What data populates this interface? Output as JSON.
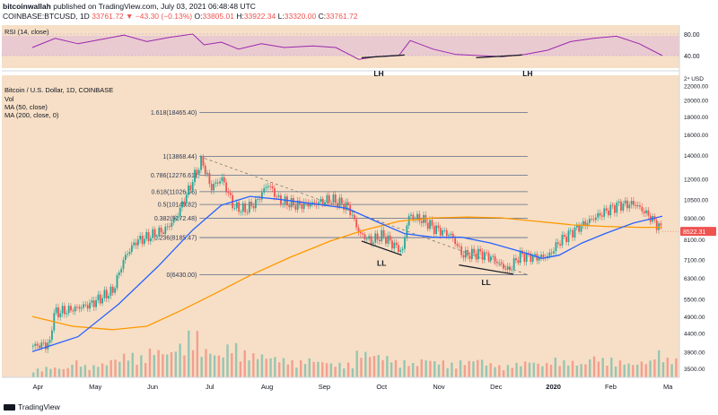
{
  "header": {
    "author": "bitcoinwallah",
    "published_on": "published on TradingView.com, July 03, 2021 06:48:48 UTC",
    "symbol": "COINBASE:BTCUSD, 1D",
    "change": "33761.72 ▼ −43.30 (−0.13%)",
    "ohlc": {
      "o_label": "O:",
      "o": "33805.01",
      "h_label": "H:",
      "h": "33922.34",
      "l_label": "L:",
      "l": "33320.00",
      "c_label": "C:",
      "c": "33761.72"
    }
  },
  "chart_data": {
    "type": "line",
    "title": "Bitcoin / U.S. Dollar, 1D, COINBASE",
    "legend_items": [
      "Vol",
      "MA (50, close)",
      "MA (200, close, 0)"
    ],
    "rsi_panel": {
      "label": "RSI (14, close)",
      "ticks": [
        "80.00",
        "40.00"
      ],
      "annotations": [
        "LH",
        "LH"
      ]
    },
    "x_tick_labels": [
      "Apr",
      "May",
      "Jun",
      "Jul",
      "Aug",
      "Sep",
      "Oct",
      "Nov",
      "Dec",
      "2020",
      "Feb",
      "Ma"
    ],
    "y_scale": "log",
    "y_top_label": "2⁴ USD",
    "y_tick_labels": [
      "22000.00",
      "20000.00",
      "18000.00",
      "16000.00",
      "14000.00",
      "12000.00",
      "10500.00",
      "9300.00",
      "8100.00",
      "7100.00",
      "6300.00",
      "5500.00",
      "4900.00",
      "4400.00",
      "3900.00",
      "3500.00"
    ],
    "y_ticks": [
      22000,
      20000,
      18000,
      16000,
      14000,
      12000,
      10500,
      9300,
      8100,
      7100,
      6300,
      5500,
      4900,
      4400,
      3900,
      3500
    ],
    "ylim": [
      3300,
      23500
    ],
    "last_price_label": "8522.31",
    "last_price": 8522.31,
    "fibonacci_levels": [
      {
        "label": "1.618(18465.40)",
        "value": 18465.4
      },
      {
        "label": "1(13868.44)",
        "value": 13868.44
      },
      {
        "label": "0.786(12276.61)",
        "value": 12276.61
      },
      {
        "label": "0.618(11026.96)",
        "value": 11026.96
      },
      {
        "label": "0.5(10149.82)",
        "value": 10149.82
      },
      {
        "label": "0.382(9272.48)",
        "value": 9272.48
      },
      {
        "label": "0.236(8185.47)",
        "value": 8185.47
      },
      {
        "label": "0(6430.00)",
        "value": 6430.0
      }
    ],
    "annotations": [
      "LL",
      "LL"
    ],
    "colors": {
      "candle_up": "#26a69a",
      "candle_down": "#ef5350",
      "ma50": "#2962ff",
      "ma200": "#ff9800",
      "background": "#f6dfc6",
      "rsi_band": "#e8c8d0",
      "rsi_line": "#9c27b0"
    },
    "price_path": [
      {
        "month": 0,
        "close": 4050
      },
      {
        "month": 0.3,
        "close": 4100
      },
      {
        "month": 0.35,
        "close": 5000
      },
      {
        "month": 0.6,
        "close": 5100
      },
      {
        "month": 1.0,
        "close": 5300
      },
      {
        "month": 1.4,
        "close": 5800
      },
      {
        "month": 1.6,
        "close": 7200
      },
      {
        "month": 1.8,
        "close": 8000
      },
      {
        "month": 2.0,
        "close": 8200
      },
      {
        "month": 2.3,
        "close": 8600
      },
      {
        "month": 2.5,
        "close": 9300
      },
      {
        "month": 2.7,
        "close": 11000
      },
      {
        "month": 2.85,
        "close": 12500
      },
      {
        "month": 2.95,
        "close": 13500
      },
      {
        "month": 3.1,
        "close": 11300
      },
      {
        "month": 3.3,
        "close": 12000
      },
      {
        "month": 3.5,
        "close": 10000
      },
      {
        "month": 3.7,
        "close": 9800
      },
      {
        "month": 3.9,
        "close": 10300
      },
      {
        "month": 4.1,
        "close": 11600
      },
      {
        "month": 4.3,
        "close": 10400
      },
      {
        "month": 4.6,
        "close": 10100
      },
      {
        "month": 4.9,
        "close": 10200
      },
      {
        "month": 5.2,
        "close": 10500
      },
      {
        "month": 5.5,
        "close": 10000
      },
      {
        "month": 5.7,
        "close": 8400
      },
      {
        "month": 5.9,
        "close": 8000
      },
      {
        "month": 6.1,
        "close": 8300
      },
      {
        "month": 6.3,
        "close": 7800
      },
      {
        "month": 6.45,
        "close": 7450
      },
      {
        "month": 6.55,
        "close": 9400
      },
      {
        "month": 6.8,
        "close": 9200
      },
      {
        "month": 7.0,
        "close": 8700
      },
      {
        "month": 7.3,
        "close": 8300
      },
      {
        "month": 7.5,
        "close": 7300
      },
      {
        "month": 7.8,
        "close": 7400
      },
      {
        "month": 8.0,
        "close": 7200
      },
      {
        "month": 8.3,
        "close": 6600
      },
      {
        "month": 8.5,
        "close": 7300
      },
      {
        "month": 8.8,
        "close": 7200
      },
      {
        "month": 9.0,
        "close": 7250
      },
      {
        "month": 9.2,
        "close": 8000
      },
      {
        "month": 9.5,
        "close": 8700
      },
      {
        "month": 9.8,
        "close": 9300
      },
      {
        "month": 10.0,
        "close": 9700
      },
      {
        "month": 10.2,
        "close": 10100
      },
      {
        "month": 10.5,
        "close": 10200
      },
      {
        "month": 10.7,
        "close": 9600
      },
      {
        "month": 10.9,
        "close": 8900
      },
      {
        "month": 11.0,
        "close": 8522
      }
    ],
    "ma50_path": [
      {
        "month": 0,
        "close": 3900
      },
      {
        "month": 0.8,
        "close": 4300
      },
      {
        "month": 1.5,
        "close": 5300
      },
      {
        "month": 2.2,
        "close": 6800
      },
      {
        "month": 2.8,
        "close": 8600
      },
      {
        "month": 3.3,
        "close": 10100
      },
      {
        "month": 3.8,
        "close": 10700
      },
      {
        "month": 4.3,
        "close": 10500
      },
      {
        "month": 4.9,
        "close": 10200
      },
      {
        "month": 5.5,
        "close": 9900
      },
      {
        "month": 6.0,
        "close": 9100
      },
      {
        "month": 6.5,
        "close": 8400
      },
      {
        "month": 7.0,
        "close": 8200
      },
      {
        "month": 7.5,
        "close": 8200
      },
      {
        "month": 8.0,
        "close": 7900
      },
      {
        "month": 8.5,
        "close": 7500
      },
      {
        "month": 8.9,
        "close": 7150
      },
      {
        "month": 9.2,
        "close": 7300
      },
      {
        "month": 9.6,
        "close": 7900
      },
      {
        "month": 10.0,
        "close": 8400
      },
      {
        "month": 10.5,
        "close": 9000
      },
      {
        "month": 11.0,
        "close": 9400
      }
    ],
    "ma200_path": [
      {
        "month": 0,
        "close": 4900
      },
      {
        "month": 0.7,
        "close": 4600
      },
      {
        "month": 1.4,
        "close": 4500
      },
      {
        "month": 2.0,
        "close": 4600
      },
      {
        "month": 2.6,
        "close": 5100
      },
      {
        "month": 3.2,
        "close": 5700
      },
      {
        "month": 3.8,
        "close": 6400
      },
      {
        "month": 4.5,
        "close": 7200
      },
      {
        "month": 5.2,
        "close": 8000
      },
      {
        "month": 5.8,
        "close": 8600
      },
      {
        "month": 6.4,
        "close": 9100
      },
      {
        "month": 7.0,
        "close": 9300
      },
      {
        "month": 7.6,
        "close": 9350
      },
      {
        "month": 8.2,
        "close": 9300
      },
      {
        "month": 8.8,
        "close": 9100
      },
      {
        "month": 9.4,
        "close": 8900
      },
      {
        "month": 10.0,
        "close": 8800
      },
      {
        "month": 10.6,
        "close": 8750
      },
      {
        "month": 11.0,
        "close": 8750
      }
    ],
    "rsi_path": [
      {
        "month": 0,
        "rsi": 55
      },
      {
        "month": 0.4,
        "rsi": 72
      },
      {
        "month": 0.8,
        "rsi": 62
      },
      {
        "month": 1.2,
        "rsi": 70
      },
      {
        "month": 1.6,
        "rsi": 78
      },
      {
        "month": 2.0,
        "rsi": 66
      },
      {
        "month": 2.4,
        "rsi": 74
      },
      {
        "month": 2.8,
        "rsi": 80
      },
      {
        "month": 3.0,
        "rsi": 60
      },
      {
        "month": 3.3,
        "rsi": 65
      },
      {
        "month": 3.6,
        "rsi": 52
      },
      {
        "month": 4.0,
        "rsi": 62
      },
      {
        "month": 4.4,
        "rsi": 55
      },
      {
        "month": 4.9,
        "rsi": 58
      },
      {
        "month": 5.3,
        "rsi": 55
      },
      {
        "month": 5.7,
        "rsi": 33
      },
      {
        "month": 6.0,
        "rsi": 38
      },
      {
        "month": 6.4,
        "rsi": 40
      },
      {
        "month": 6.6,
        "rsi": 68
      },
      {
        "month": 7.0,
        "rsi": 52
      },
      {
        "month": 7.4,
        "rsi": 42
      },
      {
        "month": 7.8,
        "rsi": 40
      },
      {
        "month": 8.2,
        "rsi": 38
      },
      {
        "month": 8.6,
        "rsi": 42
      },
      {
        "month": 9.0,
        "rsi": 50
      },
      {
        "month": 9.4,
        "rsi": 66
      },
      {
        "month": 9.8,
        "rsi": 72
      },
      {
        "month": 10.2,
        "rsi": 76
      },
      {
        "month": 10.6,
        "rsi": 62
      },
      {
        "month": 11.0,
        "rsi": 40
      }
    ],
    "volume_profile": [
      0.18,
      0.22,
      0.2,
      0.35,
      0.25,
      0.3,
      0.4,
      0.5,
      0.45,
      0.6,
      0.55,
      0.7,
      0.95,
      0.6,
      0.5,
      0.7,
      0.55,
      0.5,
      0.45,
      0.4,
      0.35,
      0.4,
      0.35,
      0.3,
      0.3,
      0.55,
      0.5,
      0.45,
      0.35,
      0.3,
      0.4,
      0.35,
      0.3,
      0.35,
      0.4,
      0.3,
      0.25,
      0.3,
      0.35,
      0.3,
      0.4,
      0.35,
      0.3,
      0.45,
      0.4,
      0.35,
      0.3,
      0.35,
      0.55,
      0.4
    ]
  },
  "footer": {
    "brand": "TradingView"
  }
}
